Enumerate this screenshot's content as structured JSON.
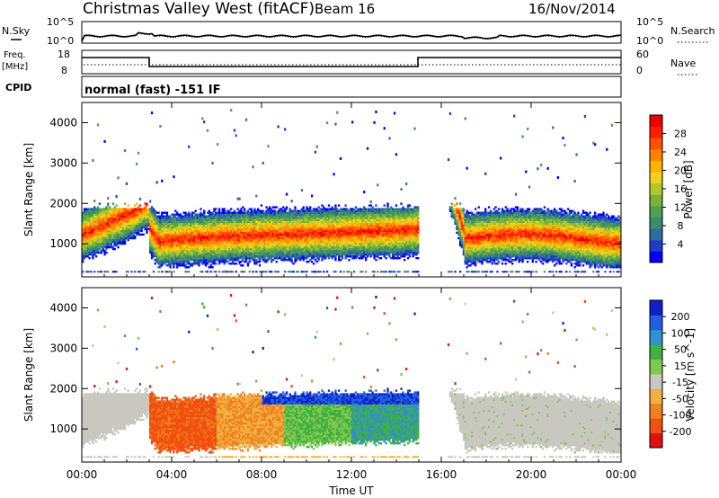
{
  "header": {
    "site": "Christmas Valley West (fitACF)",
    "beam": "Beam 16",
    "date": "16/Nov/2014"
  },
  "strip_labels": {
    "nsky": "N.Sky",
    "nsky_ticks": [
      "10^5",
      "10^0"
    ],
    "nsearch": "N.Search",
    "nsearch_ticks": [
      "10^5",
      "10^0"
    ],
    "freq": "Freq.",
    "freq_unit": "[MHz]",
    "freq_ticks": [
      "18",
      "8"
    ],
    "nave": "Nave",
    "nave_ticks": [
      "60",
      "0"
    ],
    "cpid": "CPID",
    "cpid_text": "normal (fast) -151 IF"
  },
  "chart_data": [
    {
      "type": "heatmap",
      "name": "power",
      "ylabel": "Slant Range [km]",
      "yticks": [
        "1000",
        "2000",
        "3000",
        "4000"
      ],
      "ylim": [
        180,
        4500
      ],
      "colorbar_label": "Power [dB]",
      "colorbar_ticks": [
        "4",
        "8",
        "12",
        "16",
        "20",
        "24",
        "28"
      ],
      "colorbar_range": [
        0,
        30
      ],
      "colors": [
        "#0000ff",
        "#1e3cc8",
        "#2e6e9e",
        "#3c8c6e",
        "#50a050",
        "#78b43c",
        "#b4c828",
        "#f0d21e",
        "#ffb400",
        "#ff8200",
        "#ff5000",
        "#ff1e00",
        "#f00000"
      ]
    },
    {
      "type": "heatmap",
      "name": "velocity",
      "ylabel": "Slant Range [km]",
      "yticks": [
        "1000",
        "2000",
        "3000",
        "4000"
      ],
      "ylim": [
        180,
        4500
      ],
      "colorbar_label": "Velocity [m s^-1]",
      "colorbar_ticks": [
        "200",
        "100",
        "50",
        "15",
        "-15",
        "-50",
        "-100",
        "-200"
      ],
      "colors": [
        "#1020c8",
        "#2060e0",
        "#3090d0",
        "#40b040",
        "#80c850",
        "#c8c8c0",
        "#f0b040",
        "#f08020",
        "#f05010",
        "#e01010"
      ]
    }
  ],
  "x_axis": {
    "label": "Time UT",
    "ticks": [
      "00:00",
      "04:00",
      "08:00",
      "12:00",
      "16:00",
      "20:00",
      "00:00"
    ],
    "range_hours": [
      0,
      24
    ]
  }
}
